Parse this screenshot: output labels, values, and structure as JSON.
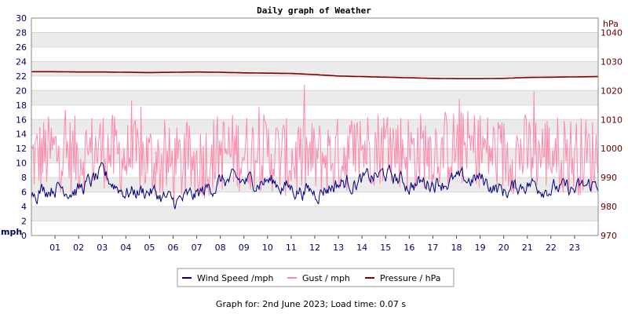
{
  "chart_data": {
    "type": "line",
    "title": "Daily graph of Weather",
    "x_ticks": [
      "01",
      "02",
      "03",
      "04",
      "05",
      "06",
      "07",
      "08",
      "09",
      "10",
      "11",
      "12",
      "13",
      "14",
      "15",
      "16",
      "17",
      "18",
      "19",
      "20",
      "21",
      "22",
      "23"
    ],
    "x_range": [
      0,
      24
    ],
    "left_axis": {
      "label": "mph",
      "range": [
        0,
        30
      ],
      "ticks": [
        0,
        2,
        4,
        6,
        8,
        10,
        12,
        14,
        16,
        18,
        20,
        22,
        24,
        26,
        28,
        30
      ],
      "color": "#000066"
    },
    "right_axis": {
      "label": "hPa",
      "range": [
        970,
        1045
      ],
      "ticks": [
        970,
        980,
        990,
        1000,
        1010,
        1020,
        1030,
        1040
      ],
      "color": "#660000"
    },
    "grid": "horizontal alternating bands",
    "legend_position": "bottom-center",
    "series": [
      {
        "name": "Wind Speed /mph",
        "axis": "left",
        "color": "#000080",
        "x": [
          0,
          1,
          2,
          3,
          4,
          5,
          6,
          7,
          8,
          9,
          10,
          11,
          12,
          13,
          14,
          15,
          16,
          17,
          18,
          19,
          20,
          21,
          22,
          23,
          24
        ],
        "values": [
          6,
          6.8,
          6.3,
          8.3,
          6,
          6.2,
          4.5,
          5.5,
          7.5,
          7.4,
          7.6,
          6.5,
          6,
          7.2,
          7.5,
          8.5,
          7,
          7.5,
          7.5,
          7.8,
          6,
          7.3,
          6.6,
          6.2,
          7.2
        ]
      },
      {
        "name": "Gust / mph",
        "axis": "left",
        "color": "#ff88aa",
        "x": [
          0,
          1,
          2,
          3,
          4,
          5,
          6,
          7,
          8,
          9,
          10,
          11,
          12,
          13,
          14,
          15,
          16,
          17,
          18,
          19,
          20,
          21,
          22,
          23,
          24
        ],
        "values": [
          10.5,
          11.5,
          11,
          12,
          10.5,
          10.5,
          9.5,
          10,
          11.5,
          11.5,
          11.5,
          10.5,
          10.5,
          11,
          12,
          12.5,
          11.5,
          12,
          12,
          12,
          11,
          11.5,
          11.5,
          11,
          11
        ]
      },
      {
        "name": "Pressure / hPa",
        "axis": "right",
        "color": "#800000",
        "x": [
          0,
          1,
          2,
          3,
          4,
          5,
          6,
          7,
          8,
          9,
          10,
          11,
          12,
          13,
          14,
          15,
          16,
          17,
          18,
          19,
          20,
          21,
          22,
          23,
          24
        ],
        "values": [
          1026.5,
          1026.5,
          1026.4,
          1026.4,
          1026.3,
          1026.2,
          1026.3,
          1026.4,
          1026.3,
          1026.1,
          1026,
          1025.9,
          1025.5,
          1025,
          1024.8,
          1024.6,
          1024.4,
          1024.2,
          1024.1,
          1024.1,
          1024.2,
          1024.5,
          1024.6,
          1024.7,
          1024.8
        ]
      }
    ]
  },
  "footer_text": "Graph for: 2nd June 2023; Load time: 0.07 s"
}
